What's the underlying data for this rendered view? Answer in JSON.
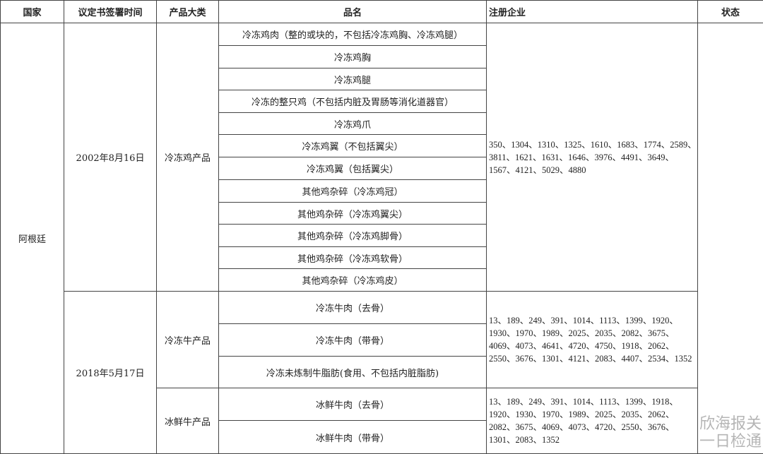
{
  "headers": [
    "国家",
    "议定书签署时间",
    "产品大类",
    "品名",
    "注册企业",
    "状态"
  ],
  "country": "阿根廷",
  "groups": [
    {
      "date": "2002年8月16日",
      "category": "冷冻鸡产品",
      "products": [
        "冷冻鸡肉（整的或块的，不包括冷冻鸡胸、冷冻鸡腿）",
        "冷冻鸡胸",
        "冷冻鸡腿",
        "冷冻的整只鸡（不包括内脏及胃肠等消化道器官）",
        "冷冻鸡爪",
        "冷冻鸡翼（不包括翼尖）",
        "冷冻鸡翼（包括翼尖）",
        "其他鸡杂碎（冷冻鸡冠）",
        "其他鸡杂碎（冷冻鸡翼尖）",
        "其他鸡杂碎（冷冻鸡脚骨）",
        "其他鸡杂碎（冷冻鸡软骨）",
        "其他鸡杂碎（冷冻鸡皮）"
      ],
      "companies": "350、1304、1310、1325、1610、1683、1774、2589、3811、1621、1631、1646、3976、4491、3649、1567、4121、5029、4880"
    },
    {
      "date": "2018年5月17日",
      "category": "冷冻牛产品",
      "products": [
        "冷冻牛肉（去骨）",
        "冷冻牛肉（带骨）",
        "冷冻未炼制牛脂肪(食用、不包括内脏脂肪)"
      ],
      "companies": "13、189、249、391、1014、1113、1399、1920、1930、1970、1989、2025、2035、2082、3675、4069、4073、4641、4720、4750、1918、2062、2550、3676、1301、4121、2083、4407、2534、1352"
    },
    {
      "category": "冰鲜牛产品",
      "products": [
        "冰鲜牛肉（去骨）",
        "冰鲜牛肉（带骨）"
      ],
      "companies": "13、189、249、391、1014、1113、1399、1918、1920、1930、1970、1989、2025、2035、2062、2082、3675、4069、4073、4720、2550、3676、1301、2083、1352"
    }
  ],
  "watermark": "欣海报关一日检通"
}
